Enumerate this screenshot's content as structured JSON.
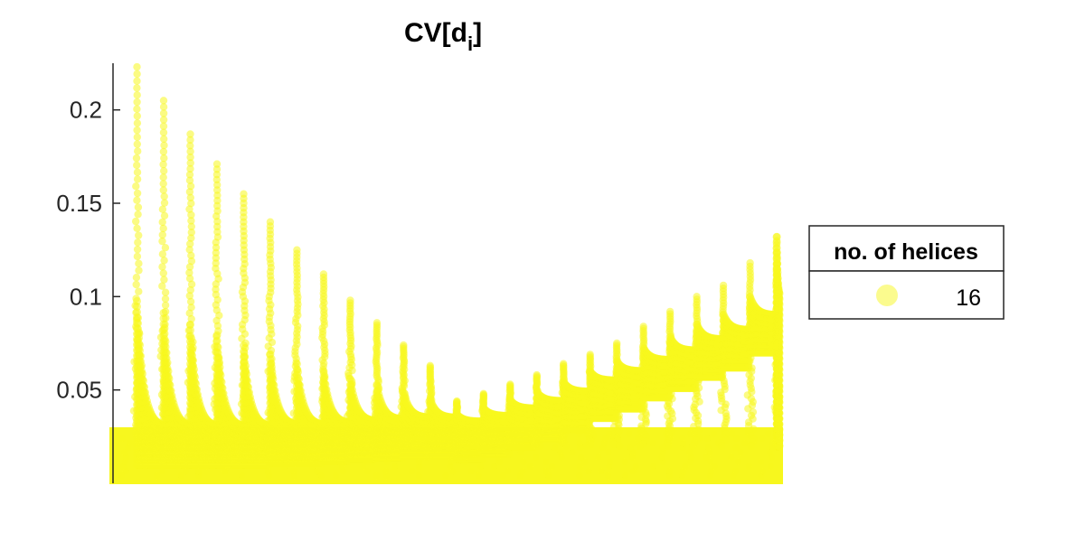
{
  "chart_data": {
    "type": "scatter",
    "title": "CV[d",
    "title_subscript": "i",
    "title_suffix": "]",
    "xlabel": "",
    "ylabel": "",
    "ylim": [
      0,
      0.225
    ],
    "yticks": [
      0.05,
      0.1,
      0.15,
      0.2
    ],
    "ytick_labels": [
      "0.05",
      "0.1",
      "0.15",
      "0.2"
    ],
    "x_axis_visible": false,
    "grid": false,
    "legend": {
      "title": "no. of helices",
      "placement": "right",
      "entries": [
        {
          "label": "16",
          "color": "#f7f71e"
        }
      ]
    },
    "marker_color": "#f7f71e",
    "marker_alpha": 0.55,
    "series": [
      {
        "name": "16",
        "groups": 25,
        "peaks": [
          0.223,
          0.205,
          0.187,
          0.171,
          0.155,
          0.14,
          0.125,
          0.112,
          0.098,
          0.086,
          0.074,
          0.063,
          0.044,
          0.048,
          0.053,
          0.058,
          0.064,
          0.069,
          0.075,
          0.084,
          0.092,
          0.1,
          0.106,
          0.118,
          0.132
        ],
        "trailing_levels": [
          0.03,
          0.03,
          0.03,
          0.03,
          0.03,
          0.031,
          0.031,
          0.032,
          0.033,
          0.034,
          0.035,
          0.035,
          0.033,
          0.036,
          0.04,
          0.044,
          0.049,
          0.055,
          0.06,
          0.066,
          0.071,
          0.077,
          0.082,
          0.09,
          0.1
        ],
        "base": 0.0
      }
    ]
  }
}
